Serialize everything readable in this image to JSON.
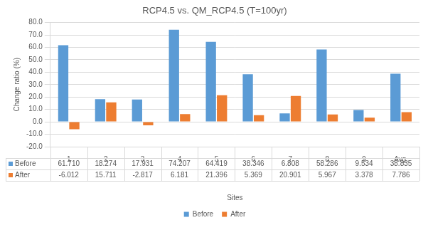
{
  "chart_data": {
    "type": "bar",
    "title": "RCP4.5 vs. QM_RCP4.5 (T=100yr)",
    "x_label": "Sites",
    "y_label": "Change ratio (%)",
    "categories": [
      "1",
      "2",
      "3",
      "4",
      "5",
      "6",
      "7",
      "8",
      "9",
      "Avg."
    ],
    "series": [
      {
        "name": "Before",
        "color": "#5B9BD5",
        "values": [
          61.71,
          18.274,
          17.931,
          74.207,
          64.419,
          38.346,
          6.808,
          58.286,
          9.534,
          38.835
        ],
        "value_labels": [
          "61.710",
          "18.274",
          "17.931",
          "74.207",
          "64.419",
          "38.346",
          "6.808",
          "58.286",
          "9.534",
          "38.835"
        ]
      },
      {
        "name": "After",
        "color": "#ED7D31",
        "values": [
          -6.012,
          15.711,
          -2.817,
          6.181,
          21.396,
          5.369,
          20.901,
          5.967,
          3.378,
          7.786
        ],
        "value_labels": [
          "-6.012",
          "15.711",
          "-2.817",
          "6.181",
          "21.396",
          "5.369",
          "20.901",
          "5.967",
          "3.378",
          "7.786"
        ]
      }
    ],
    "ylim": [
      -20,
      80
    ],
    "yticks": [
      {
        "value": -20,
        "label": "-20.0"
      },
      {
        "value": -10,
        "label": "-10.0"
      },
      {
        "value": 0,
        "label": "0.0"
      },
      {
        "value": 10,
        "label": "10.0"
      },
      {
        "value": 20,
        "label": "20.0"
      },
      {
        "value": 30,
        "label": "30.0"
      },
      {
        "value": 40,
        "label": "40.0"
      },
      {
        "value": 50,
        "label": "50.0"
      },
      {
        "value": 60,
        "label": "60.0"
      },
      {
        "value": 70,
        "label": "70.0"
      },
      {
        "value": 80,
        "label": "80.0"
      }
    ],
    "grid": true,
    "legend": "bottom"
  }
}
